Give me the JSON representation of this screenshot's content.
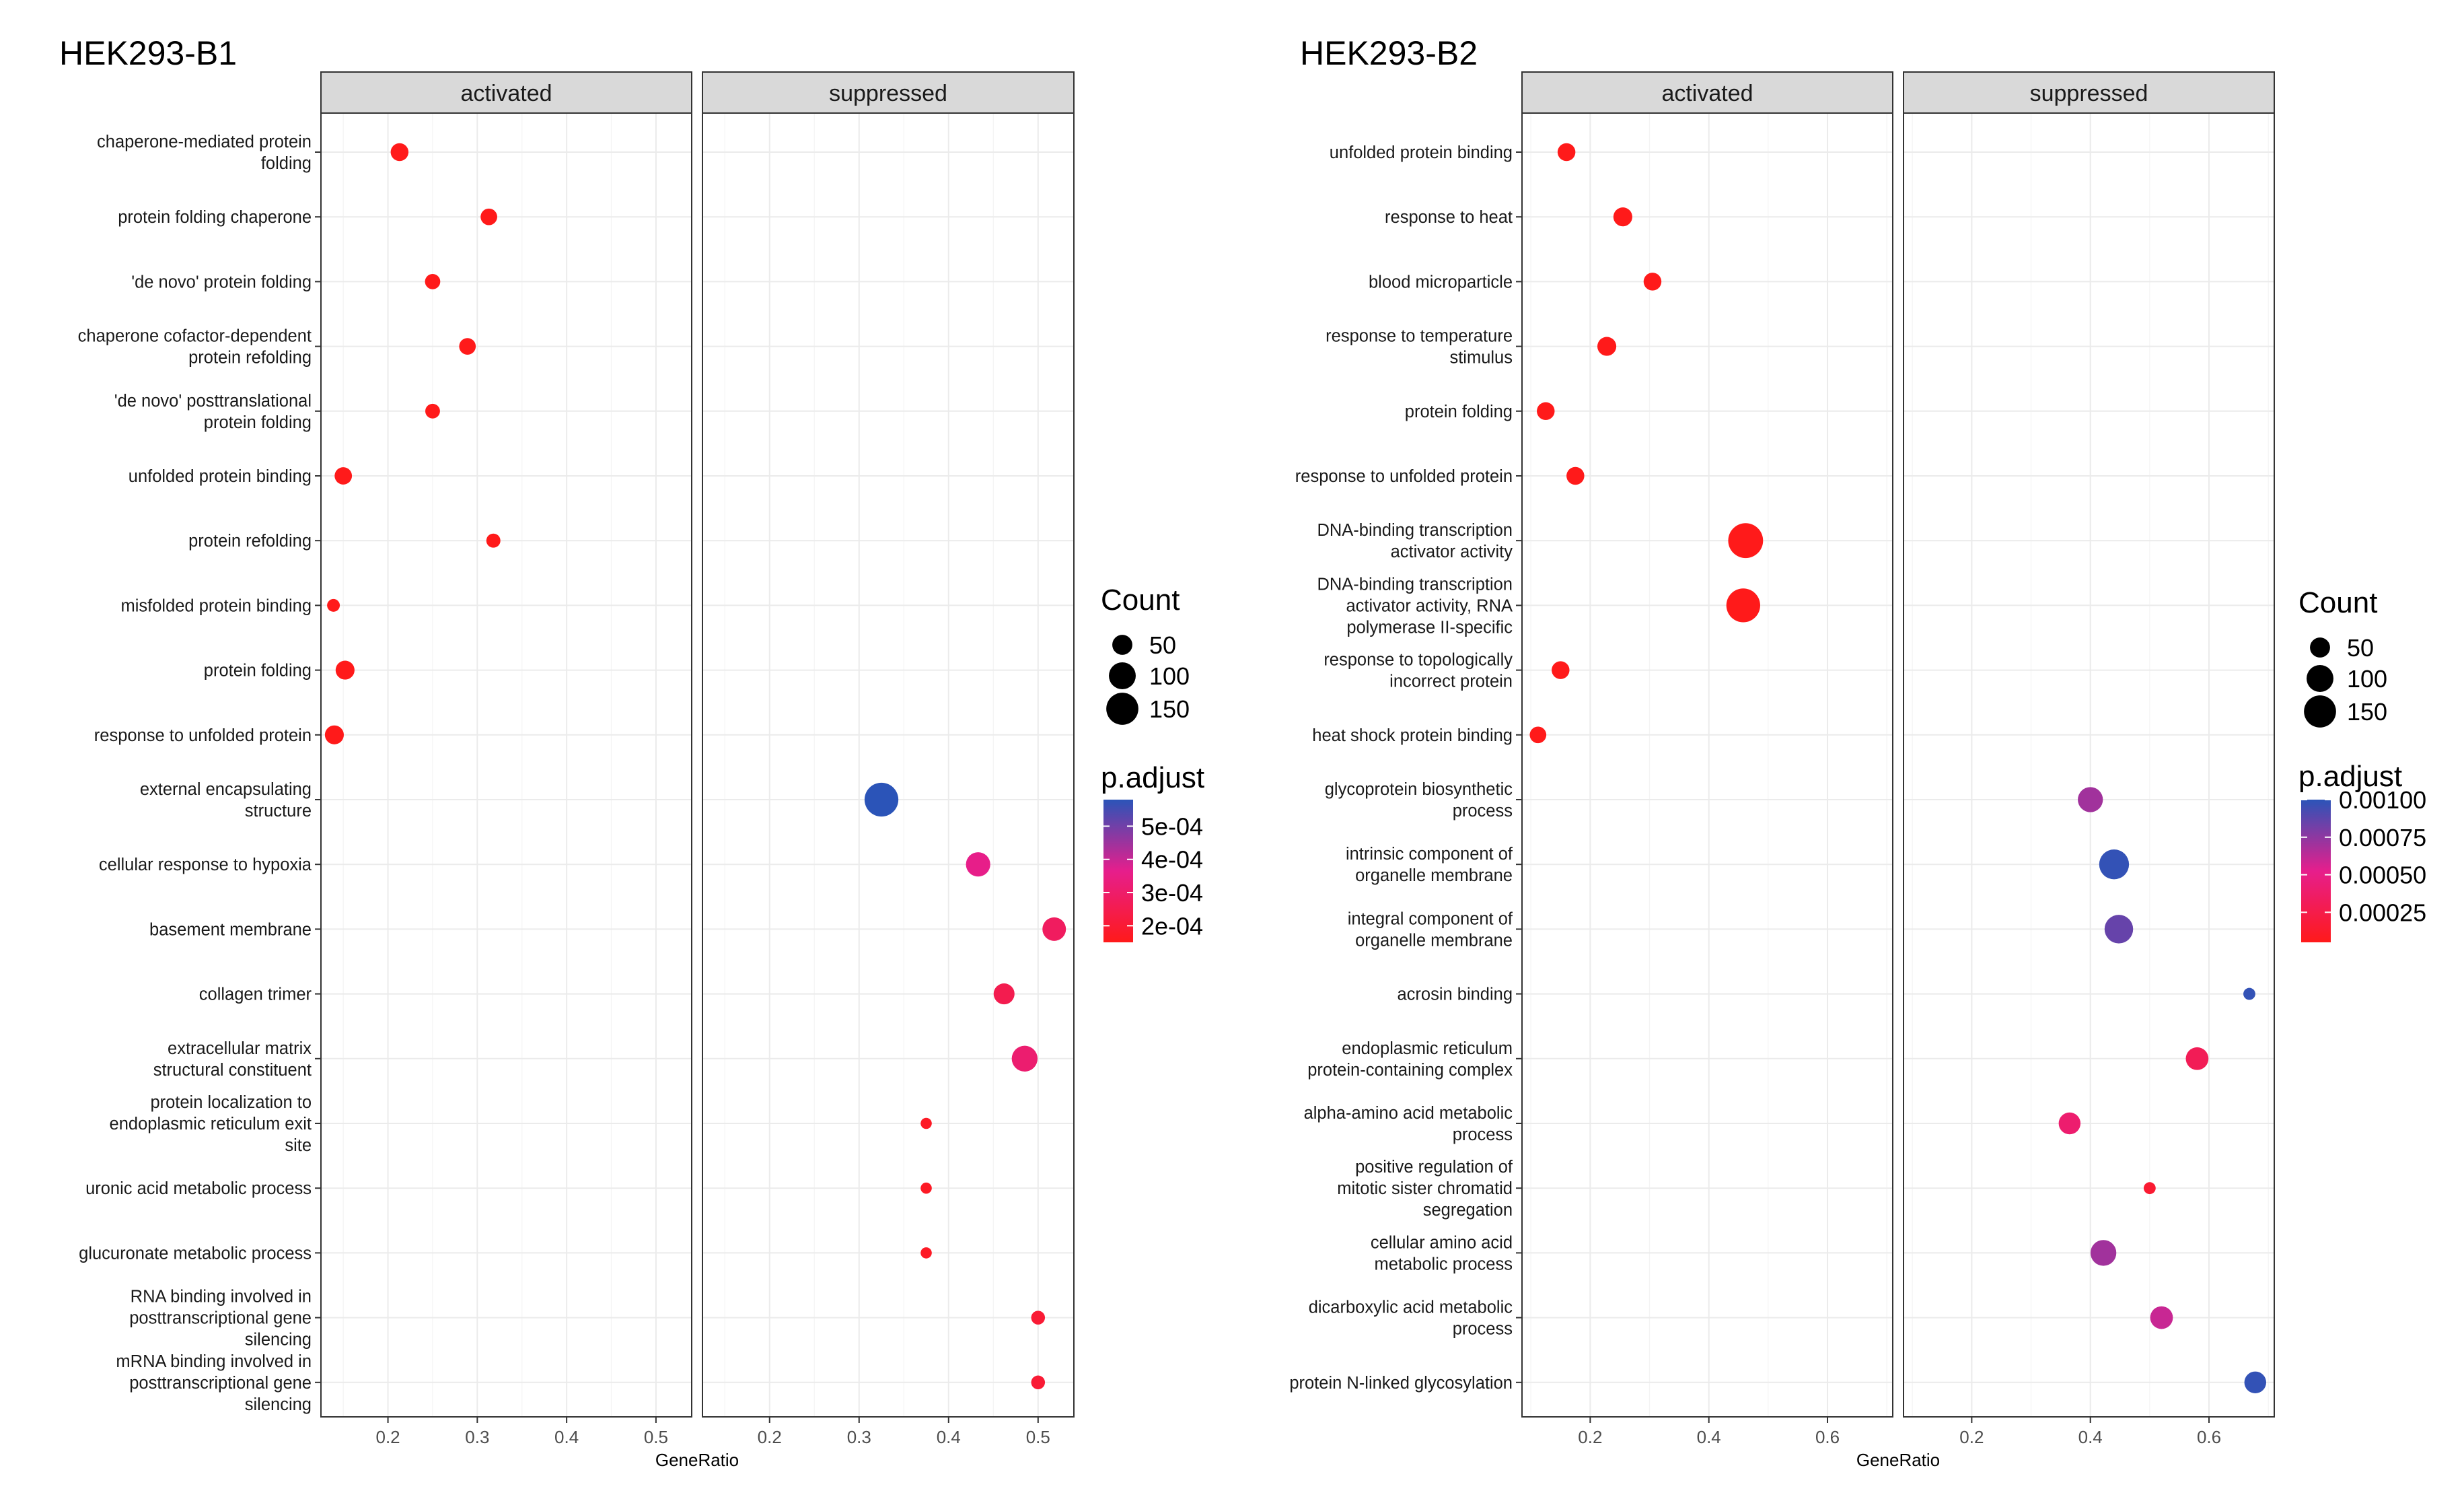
{
  "colors": {
    "low": "#ff1a1a",
    "mid": "#e61e8c",
    "high": "#2b54b8"
  },
  "chart_data": [
    {
      "type": "scatter",
      "title": "HEK293-B1",
      "xlabel": "GeneRatio",
      "ylabel": "",
      "xlim": [
        0.125,
        0.54
      ],
      "xticks": [
        0.2,
        0.3,
        0.4,
        0.5
      ],
      "xtick_labels": [
        "0.2",
        "0.3",
        "0.4",
        "0.5"
      ],
      "facets": [
        "activated",
        "suppressed"
      ],
      "categories": [
        "chaperone-mediated protein folding",
        "protein folding chaperone",
        "'de novo' protein folding",
        "chaperone cofactor-dependent protein refolding",
        "'de novo' posttranslational protein folding",
        "unfolded protein binding",
        "protein refolding",
        "misfolded protein binding",
        "protein folding",
        "response to unfolded protein",
        "external encapsulating structure",
        "cellular response to hypoxia",
        "basement membrane",
        "collagen trimer",
        "extracellular matrix structural constituent",
        "protein localization to endoplasmic reticulum exit site",
        "uronic acid metabolic process",
        "glucuronate metabolic process",
        "RNA binding involved in posttranscriptional gene silencing",
        "mRNA binding involved in posttranscriptional gene silencing"
      ],
      "category_lines": [
        [
          "chaperone-mediated protein",
          "folding"
        ],
        [
          "protein folding chaperone"
        ],
        [
          "'de novo' protein folding"
        ],
        [
          "chaperone cofactor-dependent",
          "protein refolding"
        ],
        [
          "'de novo' posttranslational",
          "protein folding"
        ],
        [
          "unfolded protein binding"
        ],
        [
          "protein refolding"
        ],
        [
          "misfolded protein binding"
        ],
        [
          "protein folding"
        ],
        [
          "response to unfolded protein"
        ],
        [
          "external encapsulating",
          "structure"
        ],
        [
          "cellular response to hypoxia"
        ],
        [
          "basement membrane"
        ],
        [
          "collagen trimer"
        ],
        [
          "extracellular matrix",
          "structural constituent"
        ],
        [
          "protein localization to",
          "endoplasmic reticulum exit",
          "site"
        ],
        [
          "uronic acid metabolic process"
        ],
        [
          "glucuronate metabolic process"
        ],
        [
          "RNA binding involved in",
          "posttranscriptional gene",
          "silencing"
        ],
        [
          "mRNA binding involved in",
          "posttranscriptional gene",
          "silencing"
        ]
      ],
      "points": [
        {
          "facet": "activated",
          "category": 0,
          "x": 0.213,
          "count": 30,
          "padj": 8e-05
        },
        {
          "facet": "activated",
          "category": 1,
          "x": 0.313,
          "count": 25,
          "padj": 8e-05
        },
        {
          "facet": "activated",
          "category": 2,
          "x": 0.25,
          "count": 20,
          "padj": 8e-05
        },
        {
          "facet": "activated",
          "category": 3,
          "x": 0.289,
          "count": 25,
          "padj": 8e-05
        },
        {
          "facet": "activated",
          "category": 4,
          "x": 0.25,
          "count": 18,
          "padj": 8e-05
        },
        {
          "facet": "activated",
          "category": 5,
          "x": 0.15,
          "count": 28,
          "padj": 8e-05
        },
        {
          "facet": "activated",
          "category": 6,
          "x": 0.318,
          "count": 16,
          "padj": 8e-05
        },
        {
          "facet": "activated",
          "category": 7,
          "x": 0.139,
          "count": 12,
          "padj": 8e-05
        },
        {
          "facet": "activated",
          "category": 8,
          "x": 0.152,
          "count": 35,
          "padj": 8e-05
        },
        {
          "facet": "activated",
          "category": 9,
          "x": 0.14,
          "count": 35,
          "padj": 8e-05
        },
        {
          "facet": "suppressed",
          "category": 10,
          "x": 0.325,
          "count": 140,
          "padj": 0.00058
        },
        {
          "facet": "suppressed",
          "category": 11,
          "x": 0.433,
          "count": 65,
          "padj": 0.00036
        },
        {
          "facet": "suppressed",
          "category": 12,
          "x": 0.518,
          "count": 60,
          "padj": 0.00028
        },
        {
          "facet": "suppressed",
          "category": 13,
          "x": 0.462,
          "count": 45,
          "padj": 0.00025
        },
        {
          "facet": "suppressed",
          "category": 14,
          "x": 0.485,
          "count": 75,
          "padj": 0.00031
        },
        {
          "facet": "suppressed",
          "category": 15,
          "x": 0.375,
          "count": 8,
          "padj": 0.00017
        },
        {
          "facet": "suppressed",
          "category": 16,
          "x": 0.375,
          "count": 8,
          "padj": 0.00017
        },
        {
          "facet": "suppressed",
          "category": 17,
          "x": 0.375,
          "count": 8,
          "padj": 0.00017
        },
        {
          "facet": "suppressed",
          "category": 18,
          "x": 0.5,
          "count": 15,
          "padj": 0.0002
        },
        {
          "facet": "suppressed",
          "category": 19,
          "x": 0.5,
          "count": 15,
          "padj": 0.0002
        }
      ],
      "legend": {
        "size_title": "Count",
        "size_breaks": [
          50,
          100,
          150
        ],
        "size_labels": [
          "50",
          "100",
          "150"
        ],
        "color_title": "p.adjust",
        "color_range": [
          0.00015,
          0.00058
        ],
        "color_breaks": [
          0.0005,
          0.0004,
          0.0003,
          0.0002
        ],
        "color_labels": [
          "5e-04",
          "4e-04",
          "3e-04",
          "2e-04"
        ]
      }
    },
    {
      "type": "scatter",
      "title": "HEK293-B2",
      "xlabel": "GeneRatio",
      "ylabel": "",
      "xlim": [
        0.085,
        0.71
      ],
      "xticks": [
        0.2,
        0.4,
        0.6
      ],
      "xtick_labels": [
        "0.2",
        "0.4",
        "0.6"
      ],
      "facets": [
        "activated",
        "suppressed"
      ],
      "categories": [
        "unfolded protein binding",
        "response to heat",
        "blood microparticle",
        "response to temperature stimulus",
        "protein folding",
        "response to unfolded protein",
        "DNA-binding transcription activator activity",
        "DNA-binding transcription activator activity, RNA polymerase II-specific",
        "response to topologically incorrect protein",
        "heat shock protein binding",
        "glycoprotein biosynthetic process",
        "intrinsic component of organelle membrane",
        "integral component of organelle membrane",
        "acrosin binding",
        "endoplasmic reticulum protein-containing complex",
        "alpha-amino acid metabolic process",
        "positive regulation of mitotic sister chromatid segregation",
        "cellular amino acid metabolic process",
        "dicarboxylic acid metabolic process",
        "protein N-linked glycosylation"
      ],
      "category_lines": [
        [
          "unfolded protein binding"
        ],
        [
          "response to heat"
        ],
        [
          "blood microparticle"
        ],
        [
          "response to temperature",
          "stimulus"
        ],
        [
          "protein folding"
        ],
        [
          "response to unfolded protein"
        ],
        [
          "DNA-binding transcription",
          "activator activity"
        ],
        [
          "DNA-binding transcription",
          "activator activity, RNA",
          "polymerase II-specific"
        ],
        [
          "response to topologically",
          "incorrect protein"
        ],
        [
          "heat shock protein binding"
        ],
        [
          "glycoprotein biosynthetic",
          "process"
        ],
        [
          "intrinsic component of",
          "organelle membrane"
        ],
        [
          "integral component of",
          "organelle membrane"
        ],
        [
          "acrosin binding"
        ],
        [
          "endoplasmic reticulum",
          "protein-containing complex"
        ],
        [
          "alpha-amino acid metabolic",
          "process"
        ],
        [
          "positive regulation of",
          "mitotic sister chromatid",
          "segregation"
        ],
        [
          "cellular amino acid",
          "metabolic process"
        ],
        [
          "dicarboxylic acid metabolic",
          "process"
        ],
        [
          "protein N-linked glycosylation"
        ]
      ],
      "points": [
        {
          "facet": "activated",
          "category": 0,
          "x": 0.16,
          "count": 30,
          "padj": 5e-05
        },
        {
          "facet": "activated",
          "category": 1,
          "x": 0.255,
          "count": 35,
          "padj": 5e-05
        },
        {
          "facet": "activated",
          "category": 2,
          "x": 0.305,
          "count": 30,
          "padj": 5e-05
        },
        {
          "facet": "activated",
          "category": 3,
          "x": 0.228,
          "count": 35,
          "padj": 5e-05
        },
        {
          "facet": "activated",
          "category": 4,
          "x": 0.125,
          "count": 30,
          "padj": 5e-05
        },
        {
          "facet": "activated",
          "category": 5,
          "x": 0.175,
          "count": 30,
          "padj": 5e-05
        },
        {
          "facet": "activated",
          "category": 6,
          "x": 0.462,
          "count": 150,
          "padj": 5e-05
        },
        {
          "facet": "activated",
          "category": 7,
          "x": 0.458,
          "count": 140,
          "padj": 5e-05
        },
        {
          "facet": "activated",
          "category": 8,
          "x": 0.15,
          "count": 30,
          "padj": 5e-05
        },
        {
          "facet": "activated",
          "category": 9,
          "x": 0.112,
          "count": 25,
          "padj": 5e-05
        },
        {
          "facet": "suppressed",
          "category": 10,
          "x": 0.4,
          "count": 70,
          "padj": 0.0007
        },
        {
          "facet": "suppressed",
          "category": 11,
          "x": 0.44,
          "count": 105,
          "padj": 0.00098
        },
        {
          "facet": "suppressed",
          "category": 12,
          "x": 0.448,
          "count": 95,
          "padj": 0.00085
        },
        {
          "facet": "suppressed",
          "category": 13,
          "x": 0.668,
          "count": 10,
          "padj": 0.00098
        },
        {
          "facet": "suppressed",
          "category": 14,
          "x": 0.58,
          "count": 55,
          "padj": 0.0003
        },
        {
          "facet": "suppressed",
          "category": 15,
          "x": 0.365,
          "count": 50,
          "padj": 0.0004
        },
        {
          "facet": "suppressed",
          "category": 16,
          "x": 0.5,
          "count": 10,
          "padj": 0.00015
        },
        {
          "facet": "suppressed",
          "category": 17,
          "x": 0.422,
          "count": 75,
          "padj": 0.0007
        },
        {
          "facet": "suppressed",
          "category": 18,
          "x": 0.52,
          "count": 55,
          "padj": 0.0006
        },
        {
          "facet": "suppressed",
          "category": 19,
          "x": 0.678,
          "count": 50,
          "padj": 0.00098
        }
      ],
      "legend": {
        "size_title": "Count",
        "size_breaks": [
          50,
          100,
          150
        ],
        "size_labels": [
          "50",
          "100",
          "150"
        ],
        "color_title": "p.adjust",
        "color_range": [
          5e-05,
          0.001
        ],
        "color_breaks": [
          0.001,
          0.00075,
          0.0005,
          0.00025
        ],
        "color_labels": [
          "0.00100",
          "0.00075",
          "0.00050",
          "0.00025"
        ]
      }
    }
  ]
}
